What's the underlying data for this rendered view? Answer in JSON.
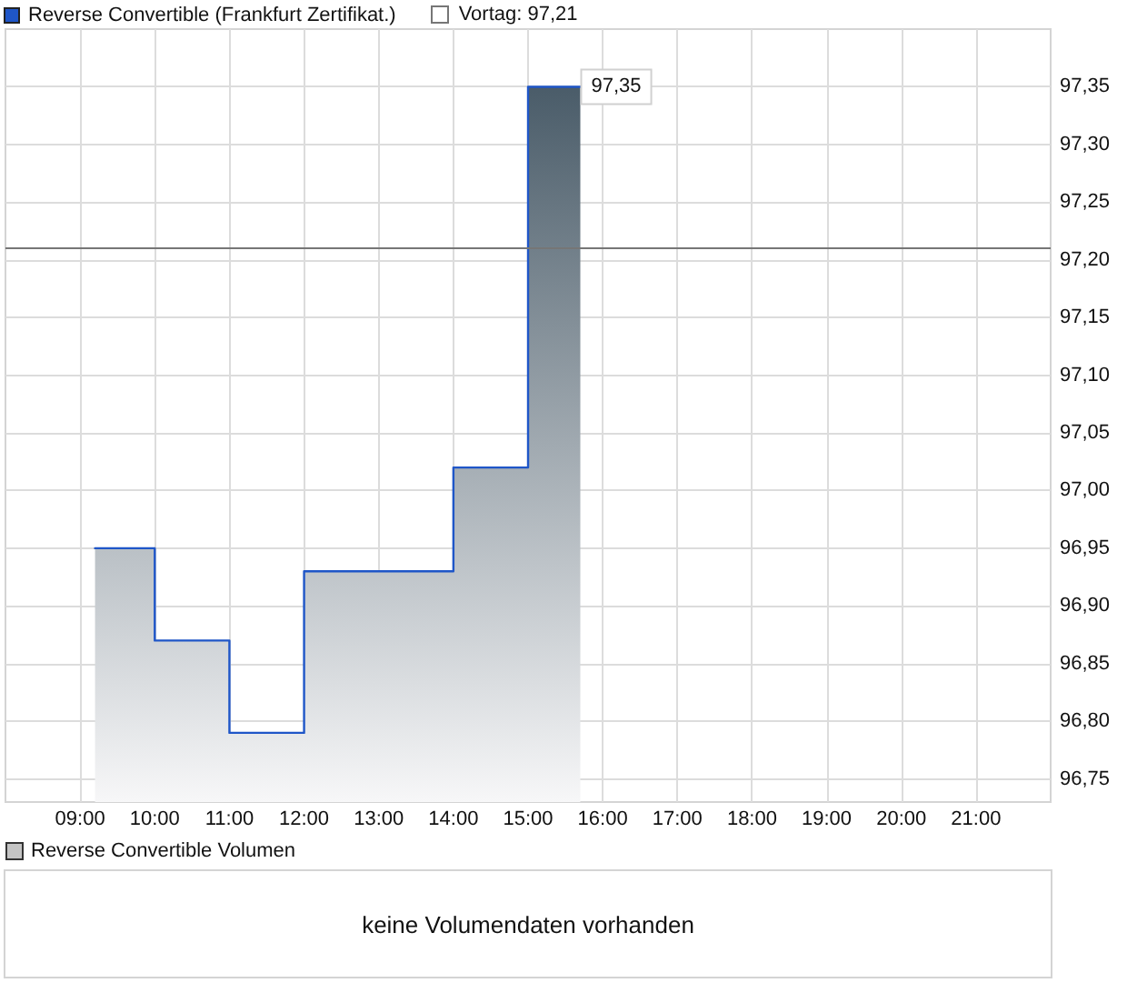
{
  "chart_data": [
    {
      "type": "area",
      "x": [
        9.2,
        10,
        10,
        11,
        11,
        12,
        12,
        14,
        14,
        15,
        15,
        15.7
      ],
      "series": [
        {
          "name": "Reverse Convertible (Frankfurt Zertifikat.)",
          "color": "#1f56c8",
          "values": [
            96.95,
            96.95,
            96.87,
            96.87,
            96.79,
            96.79,
            96.93,
            96.93,
            97.02,
            97.02,
            97.35,
            97.35
          ],
          "value_labels": [
            null,
            null,
            null,
            null,
            null,
            null,
            null,
            null,
            null,
            null,
            null,
            "97,35"
          ]
        }
      ],
      "xlim": [
        8,
        22
      ],
      "xticks": [
        {
          "value": 9,
          "label": "09:00"
        },
        {
          "value": 10,
          "label": "10:00"
        },
        {
          "value": 11,
          "label": "11:00"
        },
        {
          "value": 12,
          "label": "12:00"
        },
        {
          "value": 13,
          "label": "13:00"
        },
        {
          "value": 14,
          "label": "14:00"
        },
        {
          "value": 15,
          "label": "15:00"
        },
        {
          "value": 16,
          "label": "16:00"
        },
        {
          "value": 17,
          "label": "17:00"
        },
        {
          "value": 18,
          "label": "18:00"
        },
        {
          "value": 19,
          "label": "19:00"
        },
        {
          "value": 20,
          "label": "20:00"
        },
        {
          "value": 21,
          "label": "21:00"
        }
      ],
      "ylim": [
        96.73,
        97.4
      ],
      "yticks": [
        {
          "value": 96.75,
          "label": "96,75"
        },
        {
          "value": 96.8,
          "label": "96,80"
        },
        {
          "value": 96.85,
          "label": "96,85"
        },
        {
          "value": 96.9,
          "label": "96,90"
        },
        {
          "value": 96.95,
          "label": "96,95"
        },
        {
          "value": 97,
          "label": "97,00"
        },
        {
          "value": 97.05,
          "label": "97,05"
        },
        {
          "value": 97.1,
          "label": "97,10"
        },
        {
          "value": 97.15,
          "label": "97,15"
        },
        {
          "value": 97.2,
          "label": "97,20"
        },
        {
          "value": 97.25,
          "label": "97,25"
        },
        {
          "value": 97.3,
          "label": "97,30"
        },
        {
          "value": 97.35,
          "label": "97,35"
        }
      ],
      "grid": true,
      "legend": "top left",
      "ref_lines": [
        {
          "axis": "y",
          "value": 97.21,
          "label": "Vortag: 97,21",
          "color": "#767676"
        }
      ]
    },
    {
      "type": "other",
      "title": "Reverse Convertible Volumen",
      "annotations": [
        "keine Volumendaten vorhanden"
      ]
    }
  ]
}
